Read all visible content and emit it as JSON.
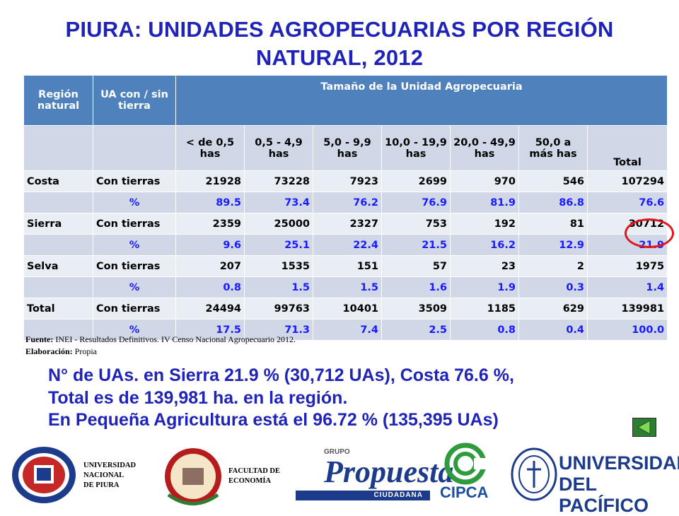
{
  "title_line1": "PIURA: UNIDADES AGROPECUARIAS POR REGIÓN",
  "title_line2": "NATURAL, 2012",
  "table": {
    "header": {
      "region": "Región natural",
      "ua": "UA con / sin tierra",
      "size": "Tamaño de la Unidad Agropecuaria"
    },
    "subheaders": [
      "< de 0,5 has",
      "0,5  - 4,9 has",
      "5,0  - 9,9 has",
      "10,0  - 19,9 has",
      "20,0  - 49,9 has",
      "50,0 a más has",
      "Total"
    ],
    "rows": [
      {
        "region": "Costa",
        "type": "Con tierras",
        "values": [
          "21928",
          "73228",
          "7923",
          "2699",
          "970",
          "546",
          "107294"
        ]
      },
      {
        "region": "",
        "type": "%",
        "values": [
          "89.5",
          "73.4",
          "76.2",
          "76.9",
          "81.9",
          "86.8",
          "76.6"
        ]
      },
      {
        "region": "Sierra",
        "type": "Con tierras",
        "values": [
          "2359",
          "25000",
          "2327",
          "753",
          "192",
          "81",
          "30712"
        ]
      },
      {
        "region": "",
        "type": "%",
        "values": [
          "9.6",
          "25.1",
          "22.4",
          "21.5",
          "16.2",
          "12.9",
          "21.9"
        ]
      },
      {
        "region": "Selva",
        "type": "Con tierras",
        "values": [
          "207",
          "1535",
          "151",
          "57",
          "23",
          "2",
          "1975"
        ]
      },
      {
        "region": "",
        "type": "%",
        "values": [
          "0.8",
          "1.5",
          "1.5",
          "1.6",
          "1.9",
          "0.3",
          "1.4"
        ]
      },
      {
        "region": "Total",
        "type": "Con tierras",
        "values": [
          "24494",
          "99763",
          "10401",
          "3509",
          "1185",
          "629",
          "139981"
        ]
      },
      {
        "region": "",
        "type": "%",
        "values": [
          "17.5",
          "71.3",
          "7.4",
          "2.5",
          "0.8",
          "0.4",
          "100.0"
        ]
      }
    ]
  },
  "source": {
    "fuente_label": "Fuente:",
    "fuente_text": " INEI - Resultados Definitivos. IV Censo Nacional Agropecuario 2012.",
    "elab_label": "Elaboración:",
    "elab_text": " Propia"
  },
  "note": {
    "line1": "N° de UAs. en Sierra 21.9 % (30,712 UAs), Costa 76.6 %,",
    "line2": "Total es de 139,981 ha. en la región.",
    "line3": "En Pequeña Agricultura está el 96.72 % (135,395 UAs)"
  },
  "footer": {
    "unp_line1": "UNIVERSIDAD",
    "unp_line2": "NACIONAL",
    "unp_line3": "DE PIURA",
    "fac_line1": "FACULTAD DE",
    "fac_line2": "ECONOMÍA",
    "grupo": "GRUPO",
    "propuesta": "Propuesta",
    "ciudadana": "CIUDADANA",
    "cipca": "CIPCA",
    "up_line1": "UNIVERSIDAD",
    "up_line2": "DEL PACÍFICO"
  },
  "colors": {
    "title": "#1f23b8",
    "header_bg": "#4f81bd",
    "row_light": "#e9edf4",
    "row_mid": "#d0d8e8",
    "pct_text": "#1a1aff",
    "highlight_circle": "#e3141b"
  },
  "icons": [
    "back-arrow-icon",
    "unp-seal-icon",
    "faculty-seal-icon",
    "cipca-logo-icon",
    "up-seal-icon"
  ]
}
